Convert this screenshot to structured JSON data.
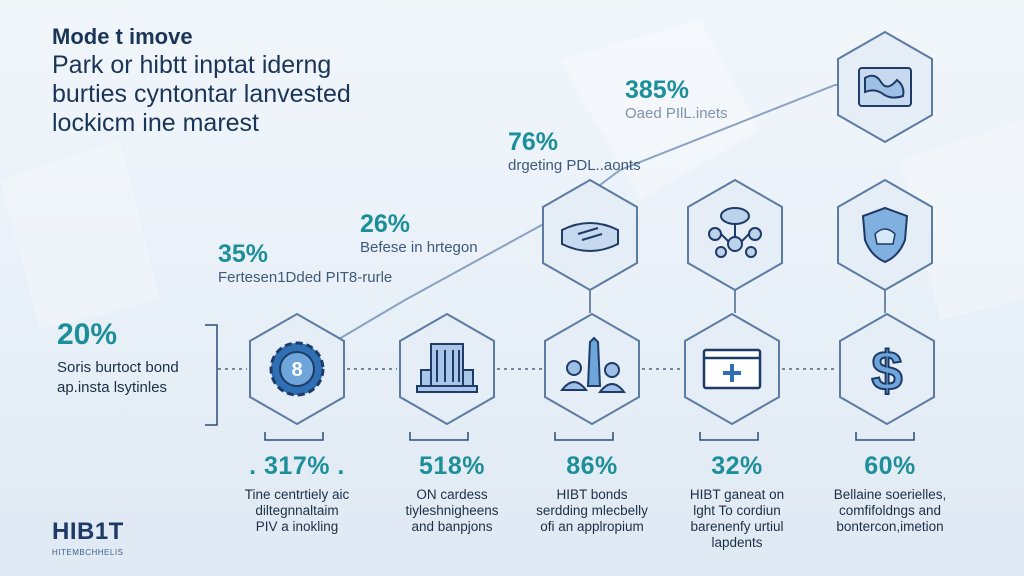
{
  "title_lines": [
    "Mode t imove",
    "Park or hibtt inptat iderng",
    "burties cyntontar lanvested",
    "lockicm ine marest"
  ],
  "left_stat": {
    "pct": "20%",
    "caption_lines": [
      "Soris burtoct bond",
      "ap.insta lsytinles"
    ]
  },
  "chart_points": [
    {
      "pct": "35%",
      "caption": "Fertesen1Dded PIT8-rurle"
    },
    {
      "pct": "26%",
      "caption": "Befese in hrtegon"
    },
    {
      "pct": "76%",
      "caption": "drgeting PDL..aonts"
    },
    {
      "pct": "385%",
      "caption": "Oaed PIlL.inets"
    }
  ],
  "bottom_row": [
    {
      "icon": "gear-badge-icon",
      "badge": "8",
      "pct": ". 317% .",
      "desc_lines": [
        "Tine centrtiely aic",
        "diltegnnaltaim",
        "PIV a inokling"
      ]
    },
    {
      "icon": "building-icon",
      "pct": "518%",
      "desc_lines": [
        "ON cardess",
        "tiyleshnigheens",
        "and banpjons"
      ]
    },
    {
      "icon": "people-tower-icon",
      "pct": "86%",
      "desc_lines": [
        "HIBT bonds",
        "serdding mlecbelly",
        "ofi an applropium"
      ]
    },
    {
      "icon": "monitor-plus-icon",
      "pct": "32%",
      "desc_lines": [
        "HIBT ganeat on",
        "lght To cordiun",
        "barenenfy urtiul",
        "lapdents"
      ]
    },
    {
      "icon": "dollar-icon",
      "pct": "60%",
      "desc_lines": [
        "Bellaine soerielles,",
        "comfifoldngs and",
        "bontercon,imetion"
      ]
    }
  ],
  "top_icons": [
    {
      "icon": "chip-card-icon"
    },
    {
      "icon": "cloud-network-icon"
    },
    {
      "icon": "shield-icon"
    },
    {
      "icon": "map-frame-icon"
    }
  ],
  "logo": {
    "name": "HIB1T",
    "sub": "HITEMBCHHELIS"
  },
  "colors": {
    "teal": "#1d8f9a",
    "navy": "#1a3557",
    "hex_stroke": "#5b7ba3",
    "hex_fill": "#dfe9f5",
    "icon_blue": "#2f6fb3"
  }
}
